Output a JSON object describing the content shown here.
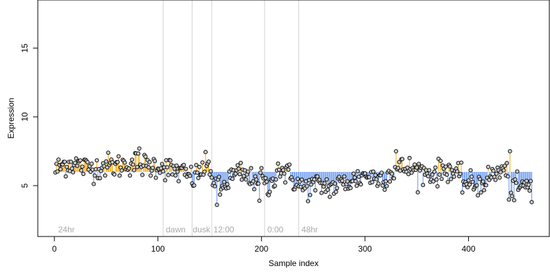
{
  "colors": {
    "above_mean": "#ffa500",
    "below_mean": "#6495ed",
    "separator": "#d3d3d3",
    "region_label": "#a9a9a9",
    "point_fill": "#c8c8c8"
  },
  "chart_data": {
    "type": "scatter",
    "title": "",
    "xlabel": "Sample index",
    "ylabel": "Expression",
    "xlim": [
      -16,
      478
    ],
    "ylim": [
      1.3,
      18.5
    ],
    "x_ticks": [
      0,
      100,
      200,
      300,
      400
    ],
    "y_ticks": [
      5,
      10,
      15
    ],
    "grid": false,
    "legend": "none",
    "mean_line": 6.0,
    "n_points": 461,
    "series": [
      {
        "style": "points with vertical segments to the mean line",
        "profile_x": [
          1,
          10,
          20,
          30,
          40,
          50,
          60,
          70,
          80,
          90,
          100,
          105,
          110,
          120,
          130,
          135,
          140,
          145,
          150,
          152,
          155,
          160,
          170,
          180,
          190,
          200,
          205,
          210,
          215,
          220,
          230,
          240,
          250,
          260,
          270,
          280,
          290,
          300,
          310,
          320,
          330,
          340,
          350,
          360,
          370,
          380,
          390,
          400,
          410,
          420,
          430,
          436,
          440,
          450,
          461
        ],
        "profile_y": [
          6.1,
          6.6,
          6.6,
          6.3,
          6.3,
          6.5,
          6.4,
          6.6,
          6.7,
          6.4,
          6.5,
          6.4,
          6.2,
          6.0,
          5.7,
          5.5,
          6.0,
          6.3,
          6.4,
          5.8,
          5.0,
          4.6,
          5.6,
          5.9,
          5.4,
          5.8,
          4.7,
          5.0,
          6.4,
          6.1,
          5.5,
          4.8,
          5.0,
          5.0,
          4.9,
          5.2,
          5.4,
          5.8,
          5.5,
          5.7,
          6.2,
          6.3,
          6.1,
          5.9,
          5.9,
          6.3,
          5.6,
          5.1,
          5.1,
          5.6,
          6.0,
          6.1,
          4.5,
          4.9,
          5.0
        ],
        "noise_sd": 0.45,
        "notable_points": [
          {
            "x": 82,
            "y": 7.7
          },
          {
            "x": 157,
            "y": 3.6
          },
          {
            "x": 198,
            "y": 3.9
          },
          {
            "x": 330,
            "y": 7.5
          },
          {
            "x": 440,
            "y": 7.5
          },
          {
            "x": 461,
            "y": 3.8
          }
        ]
      }
    ],
    "region_boundaries": [
      105,
      133,
      152,
      203,
      236
    ],
    "region_labels": [
      {
        "text": "24hr",
        "x": 3
      },
      {
        "text": "dawn",
        "x": 107
      },
      {
        "text": "dusk",
        "x": 133
      },
      {
        "text": "12:00",
        "x": 153
      },
      {
        "text": "0:00",
        "x": 205
      },
      {
        "text": "48hr",
        "x": 238
      }
    ]
  }
}
